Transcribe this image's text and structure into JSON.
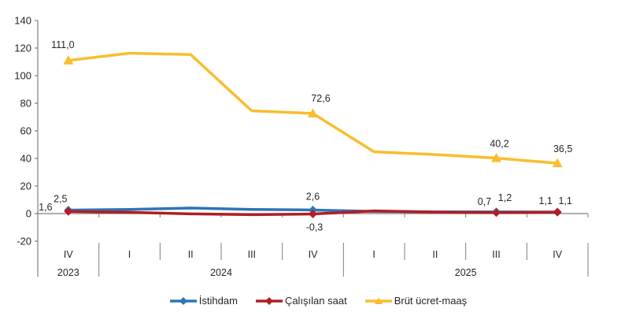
{
  "chart_data": {
    "type": "line",
    "title": "",
    "y_axis": {
      "min": -20,
      "max": 140,
      "step": 20,
      "tick_labels": [
        "-20",
        "0",
        "20",
        "40",
        "60",
        "80",
        "100",
        "120",
        "140"
      ]
    },
    "x_axis": {
      "quarters": [
        "IV",
        "I",
        "II",
        "III",
        "IV",
        "I",
        "II",
        "III",
        "IV"
      ],
      "year_groups": [
        {
          "label": "2023",
          "start": 0,
          "count": 1
        },
        {
          "label": "2024",
          "start": 1,
          "count": 4
        },
        {
          "label": "2025",
          "start": 5,
          "count": 4
        }
      ]
    },
    "series": [
      {
        "id": "istihdam",
        "name": "İstihdam",
        "color": "#2E75B6",
        "marker": "diamond",
        "values": [
          2.5,
          3.0,
          4.0,
          3.0,
          2.6,
          1.6,
          1.2,
          1.2,
          1.1
        ],
        "point_labels": [
          {
            "index": 0,
            "text": "2,5",
            "dx": -10,
            "dy": -10
          },
          {
            "index": 4,
            "text": "2,6",
            "dx": 0,
            "dy": -13
          },
          {
            "index": 7,
            "text": "1,2",
            "dx": 11,
            "dy": -14
          },
          {
            "index": 8,
            "text": "1,1",
            "dx": -15,
            "dy": -10
          }
        ]
      },
      {
        "id": "calisilan-saat",
        "name": "Çalışılan saat",
        "color": "#B01E24",
        "marker": "diamond",
        "values": [
          1.6,
          0.9,
          -0.2,
          -0.8,
          -0.3,
          1.9,
          1.1,
          0.7,
          1.1
        ],
        "point_labels": [
          {
            "index": 0,
            "text": "1,6",
            "dx": -29,
            "dy": -1
          },
          {
            "index": 4,
            "text": "-0,3",
            "dx": 2,
            "dy": 21
          },
          {
            "index": 7,
            "text": "0,7",
            "dx": -15,
            "dy": -10
          },
          {
            "index": 8,
            "text": "1,1",
            "dx": 10,
            "dy": -10
          }
        ]
      },
      {
        "id": "brut-ucret-maas",
        "name": "Brüt ücret-maaş",
        "color": "#FBBD2D",
        "marker": "triangle",
        "values": [
          111.0,
          116.3,
          115.3,
          74.5,
          72.6,
          44.8,
          42.8,
          40.2,
          36.5
        ],
        "point_labels": [
          {
            "index": 0,
            "text": "111,0",
            "dx": -7,
            "dy": -16
          },
          {
            "index": 4,
            "text": "72,6",
            "dx": 10,
            "dy": -15
          },
          {
            "index": 7,
            "text": "40,2",
            "dx": 4,
            "dy": -14
          },
          {
            "index": 8,
            "text": "36,5",
            "dx": 7,
            "dy": -14
          }
        ]
      }
    ],
    "legend": {
      "position": "bottom",
      "items": [
        "İstihdam",
        "Çalışılan saat",
        "Brüt ücret-maaş"
      ]
    },
    "colors": {
      "axis": "#7F7F7F",
      "text": "#262626"
    }
  }
}
